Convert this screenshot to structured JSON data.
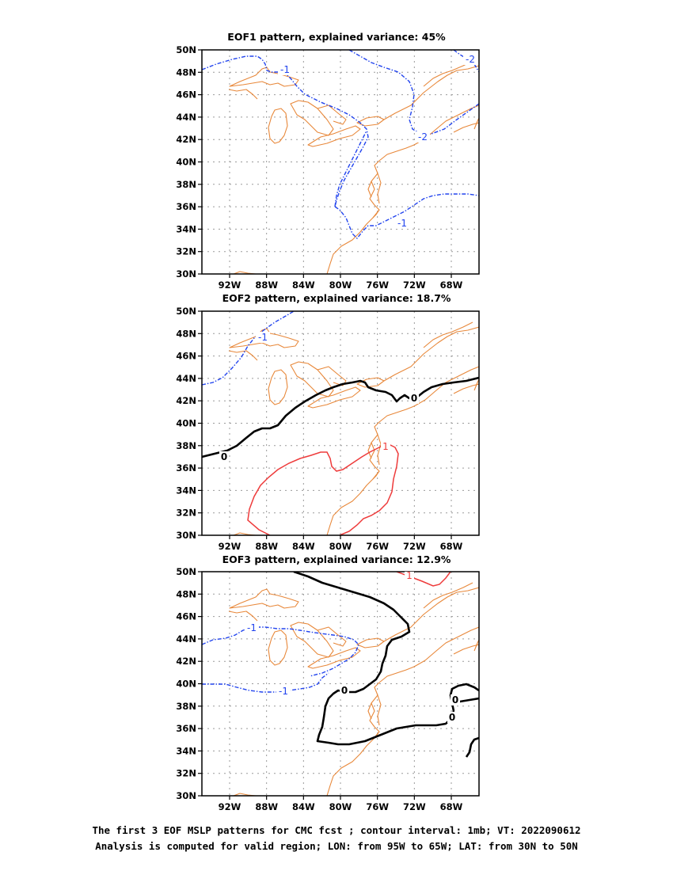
{
  "panels": [
    {
      "title": "EOF1 pattern, explained variance: 45%",
      "contours": [
        {
          "label": "-1",
          "sign": "negative"
        },
        {
          "label": "-2",
          "sign": "negative"
        },
        {
          "label": "-1",
          "sign": "negative"
        },
        {
          "label": "-2",
          "sign": "negative"
        }
      ]
    },
    {
      "title": "EOF2 pattern, explained variance: 18.7%",
      "contours": [
        {
          "label": "-1",
          "sign": "negative"
        },
        {
          "label": "0",
          "sign": "zero"
        },
        {
          "label": "0",
          "sign": "zero"
        },
        {
          "label": "1",
          "sign": "positive"
        }
      ]
    },
    {
      "title": "EOF3 pattern, explained variance: 12.9%",
      "contours": [
        {
          "label": "-1",
          "sign": "negative"
        },
        {
          "label": "-1",
          "sign": "negative"
        },
        {
          "label": "0",
          "sign": "zero"
        },
        {
          "label": "0",
          "sign": "zero"
        },
        {
          "label": "0",
          "sign": "zero"
        },
        {
          "label": "1",
          "sign": "positive"
        }
      ]
    }
  ],
  "axes": {
    "lon_ticks": [
      "92W",
      "88W",
      "84W",
      "80W",
      "76W",
      "72W",
      "68W"
    ],
    "lat_ticks": [
      "50N",
      "48N",
      "46N",
      "44N",
      "42N",
      "40N",
      "38N",
      "36N",
      "34N",
      "32N",
      "30N"
    ]
  },
  "colors": {
    "coastline": "#e8883a",
    "negative_contour": "#2244ee",
    "positive_contour": "#ee3b3b",
    "zero_contour": "#000000",
    "grid": "#9a9a9a"
  },
  "caption": {
    "line1": "The first 3 EOF MSLP patterns for CMC fcst ; contour interval: 1mb; VT: 2022090612",
    "line2": "Analysis is computed for valid region; LON: from 95W to 65W; LAT: from 30N to 50N"
  }
}
